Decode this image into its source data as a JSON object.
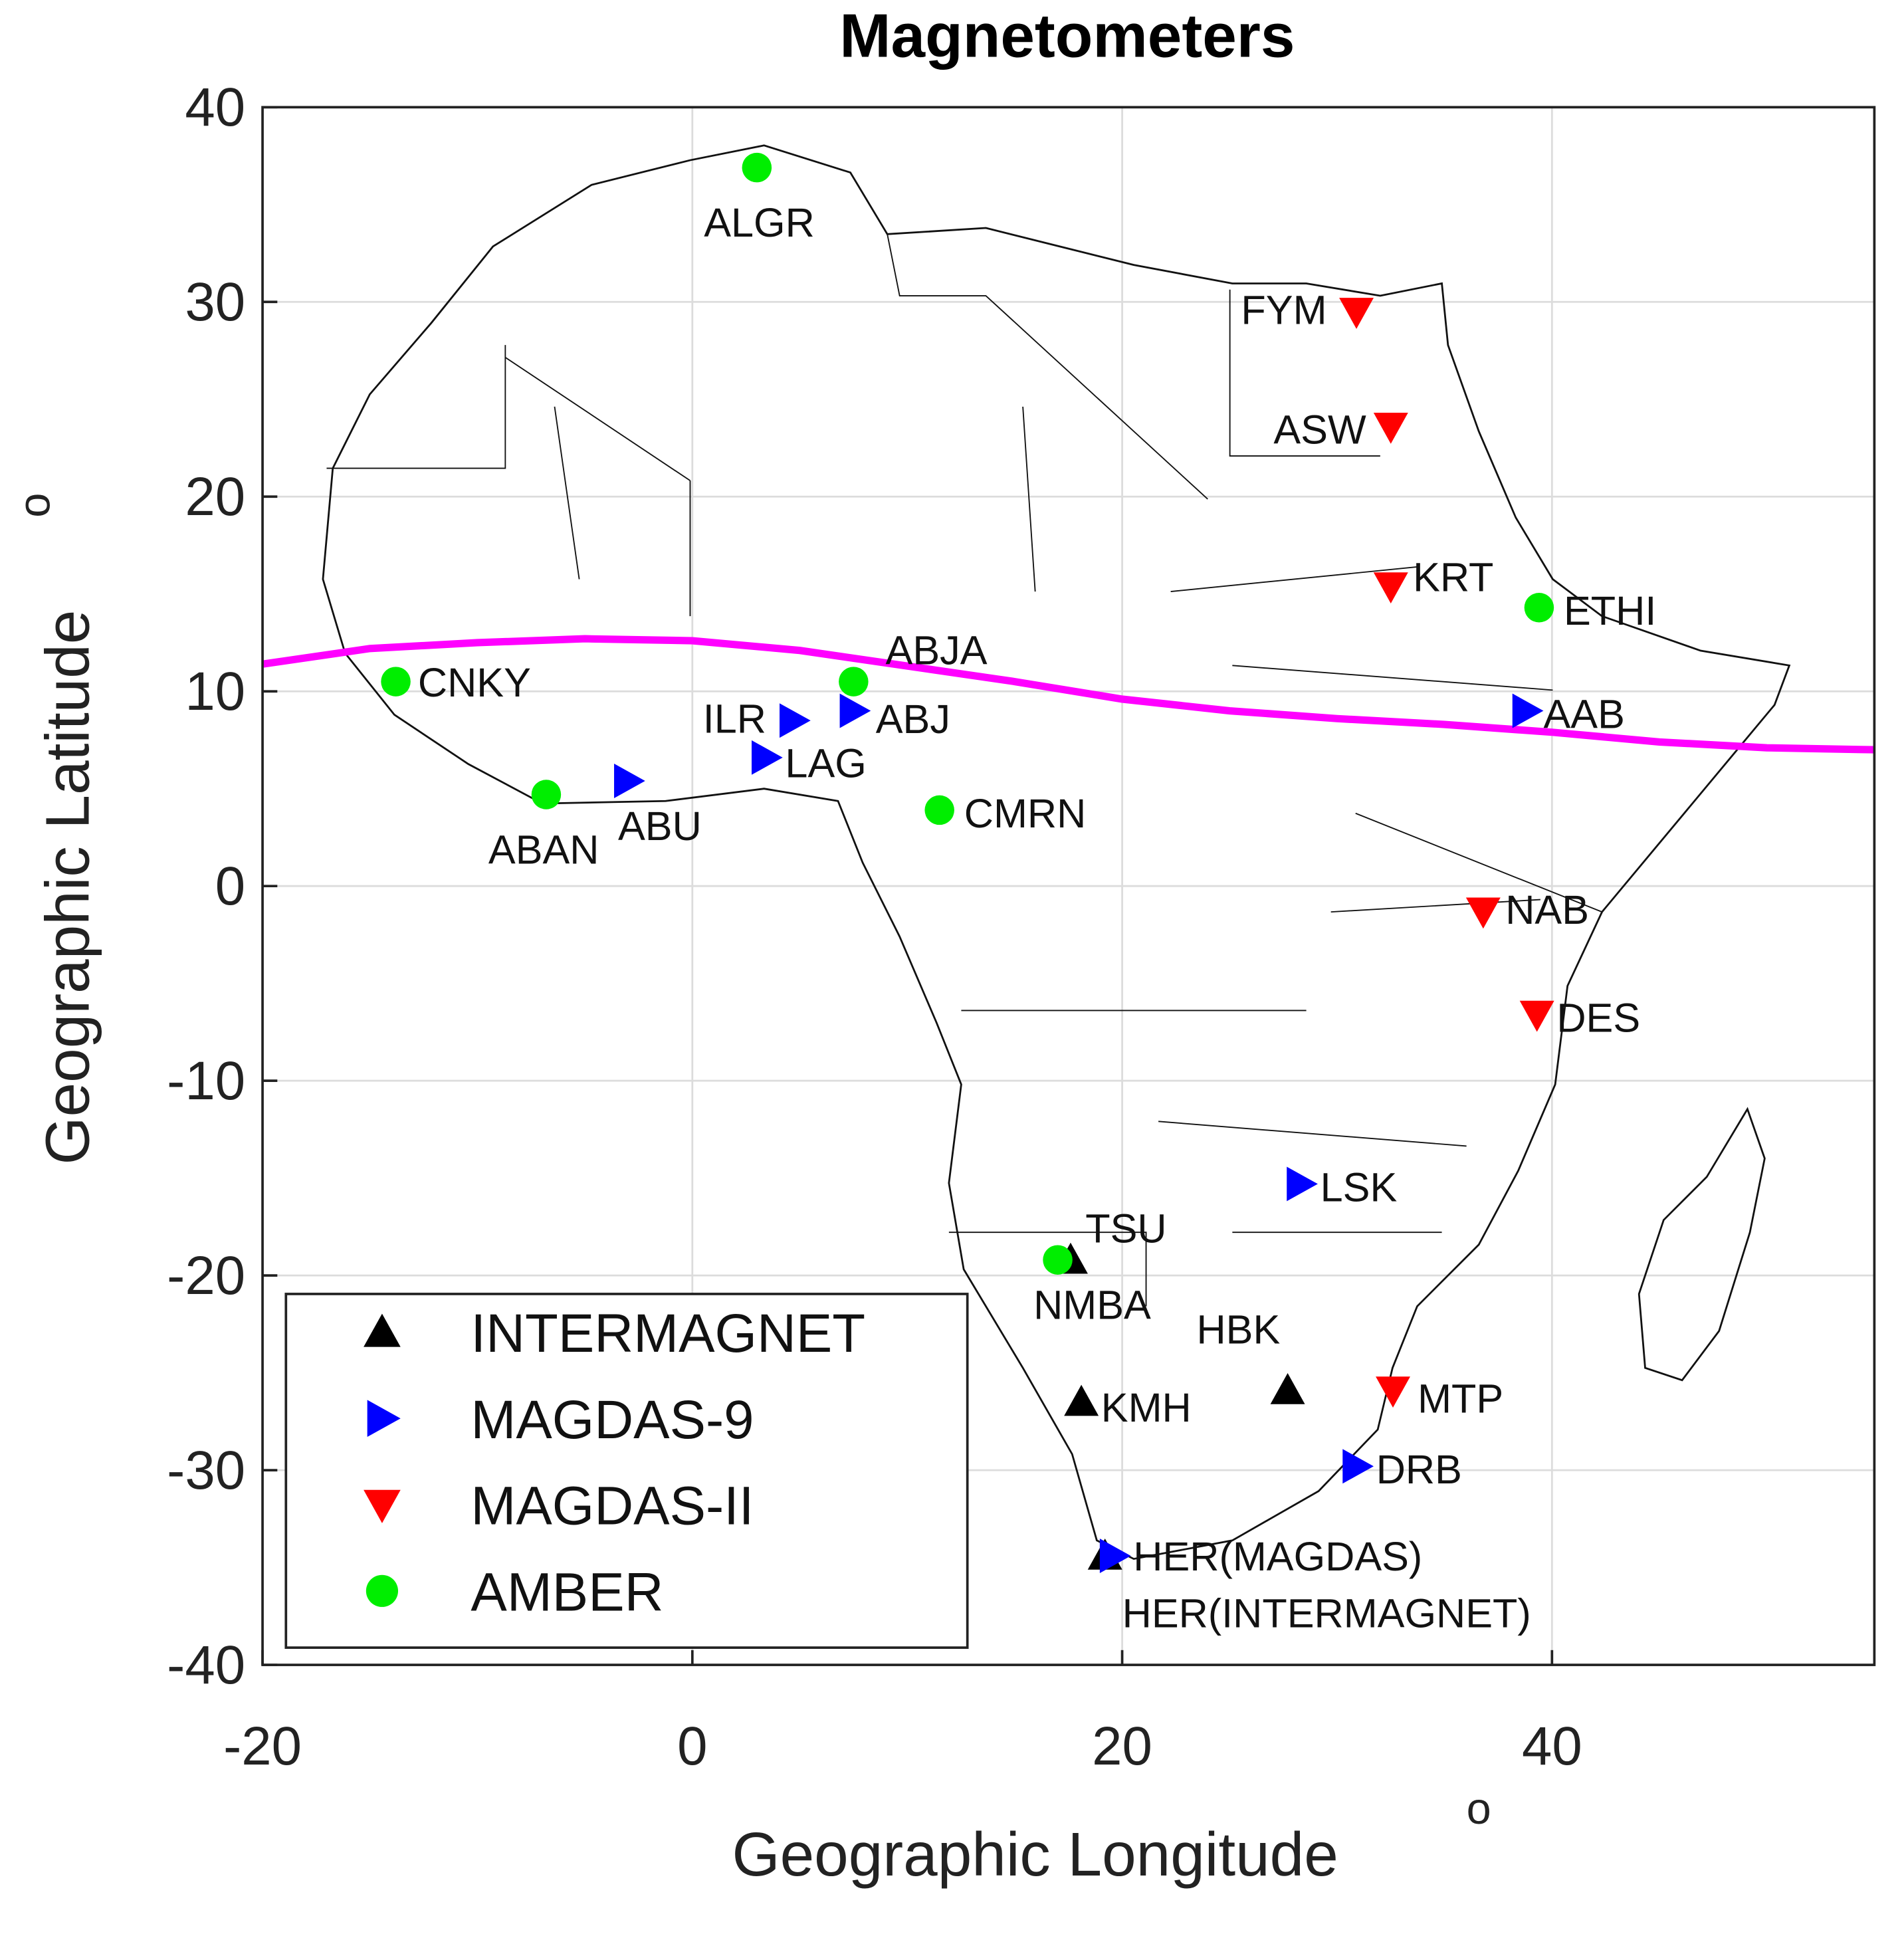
{
  "chart_data": {
    "type": "scatter",
    "title": "Magnetometers",
    "xlabel": "Geographic Longitude",
    "xlabel_superscript": "o",
    "ylabel": "Geographic Latitude",
    "ylabel_superscript": "o",
    "xlim": [
      -20,
      55
    ],
    "ylim": [
      -40,
      40
    ],
    "xticks": [
      -20,
      0,
      20,
      40
    ],
    "yticks": [
      -40,
      -30,
      -20,
      -10,
      0,
      10,
      20,
      30,
      40
    ],
    "grid": true,
    "legend": "lower left",
    "series": [
      {
        "name": "INTERMAGNET",
        "color": "#000000",
        "marker": "triangle-up",
        "x": [
          17.6,
          18.1,
          27.7,
          19.2
        ],
        "values": [
          -19.2,
          -26.5,
          -25.9,
          -34.4
        ],
        "labels": [
          "TSU",
          "KMH",
          "HBK",
          "HER(INTERMAGNET)"
        ]
      },
      {
        "name": "MAGDAS-9",
        "color": "#0000ff",
        "marker": "triangle-right",
        "x": [
          4.7,
          7.5,
          3.4,
          -3.0,
          38.8,
          28.3,
          30.9,
          19.6
        ],
        "values": [
          8.5,
          9.0,
          6.6,
          5.4,
          9.0,
          -15.3,
          -29.8,
          -34.4
        ],
        "labels": [
          "ILR",
          "ABJ",
          "LAG",
          "ABU",
          "AAB",
          "LSK",
          "DRB",
          "HER(MAGDAS)"
        ]
      },
      {
        "name": "MAGDAS-II",
        "color": "#ff0000",
        "marker": "triangle-down",
        "x": [
          30.9,
          32.5,
          32.5,
          36.8,
          39.3,
          32.6
        ],
        "values": [
          29.5,
          23.6,
          15.4,
          -1.3,
          -6.6,
          -25.9
        ],
        "labels": [
          "FYM",
          "ASW",
          "KRT",
          "NAB",
          "DES",
          "MTP"
        ]
      },
      {
        "name": "AMBER",
        "color": "#00ee00",
        "marker": "circle",
        "x": [
          3.0,
          -13.8,
          7.5,
          -6.8,
          11.5,
          39.4,
          17.0
        ],
        "values": [
          36.9,
          10.5,
          10.5,
          4.7,
          3.9,
          14.3,
          -19.2
        ],
        "labels": [
          "ALGR",
          "CNKY",
          "ABJA",
          "ABAN",
          "CMRN",
          "ETHI",
          "NMBA"
        ]
      }
    ],
    "line": {
      "color": "#ff00ff",
      "x": [
        -20,
        -15,
        -10,
        -5,
        0,
        5,
        10,
        15,
        20,
        25,
        30,
        35,
        40,
        45,
        50,
        55
      ],
      "values": [
        11.4,
        12.2,
        12.5,
        12.7,
        12.6,
        12.1,
        11.3,
        10.5,
        9.6,
        9.0,
        8.6,
        8.3,
        7.9,
        7.4,
        7.1,
        7.0
      ]
    }
  }
}
